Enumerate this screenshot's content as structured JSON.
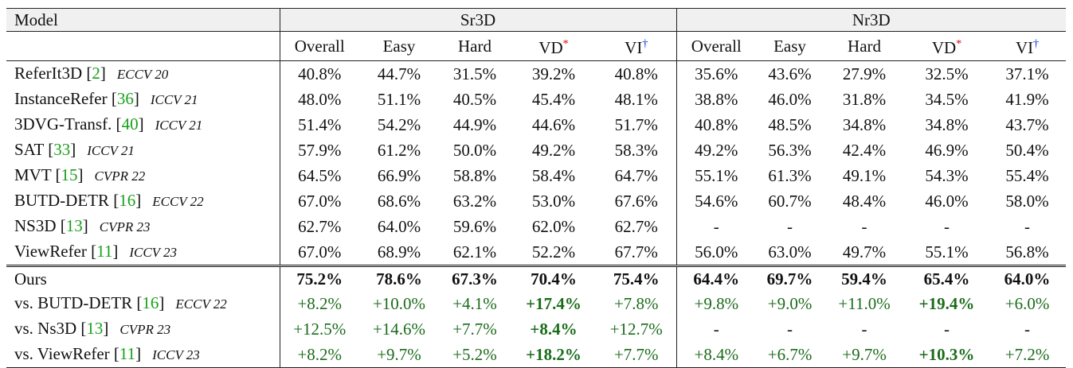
{
  "header": {
    "model_label": "Model",
    "groups": [
      "Sr3D",
      "Nr3D"
    ],
    "columns": [
      "Overall",
      "Easy",
      "Hard",
      "VD",
      "VI",
      "Overall",
      "Easy",
      "Hard",
      "VD",
      "VI"
    ],
    "vd_mark": "*",
    "vi_mark": "†"
  },
  "rows": [
    {
      "name": "ReferIt3D [",
      "cite": "2",
      "close": "]",
      "venue": "ECCV 20",
      "values": [
        "40.8%",
        "44.7%",
        "31.5%",
        "39.2%",
        "40.8%",
        "35.6%",
        "43.6%",
        "27.9%",
        "32.5%",
        "37.1%"
      ]
    },
    {
      "name": "InstanceRefer [",
      "cite": "36",
      "close": "]",
      "venue": "ICCV 21",
      "values": [
        "48.0%",
        "51.1%",
        "40.5%",
        "45.4%",
        "48.1%",
        "38.8%",
        "46.0%",
        "31.8%",
        "34.5%",
        "41.9%"
      ]
    },
    {
      "name": "3DVG-Transf. [",
      "cite": "40",
      "close": "]",
      "venue": "ICCV 21",
      "values": [
        "51.4%",
        "54.2%",
        "44.9%",
        "44.6%",
        "51.7%",
        "40.8%",
        "48.5%",
        "34.8%",
        "34.8%",
        "43.7%"
      ]
    },
    {
      "name": "SAT [",
      "cite": "33",
      "close": "]",
      "venue": "ICCV 21",
      "values": [
        "57.9%",
        "61.2%",
        "50.0%",
        "49.2%",
        "58.3%",
        "49.2%",
        "56.3%",
        "42.4%",
        "46.9%",
        "50.4%"
      ]
    },
    {
      "name": "MVT [",
      "cite": "15",
      "close": "]",
      "venue": "CVPR 22",
      "values": [
        "64.5%",
        "66.9%",
        "58.8%",
        "58.4%",
        "64.7%",
        "55.1%",
        "61.3%",
        "49.1%",
        "54.3%",
        "55.4%"
      ]
    },
    {
      "name": "BUTD-DETR [",
      "cite": "16",
      "close": "]",
      "venue": "ECCV 22",
      "values": [
        "67.0%",
        "68.6%",
        "63.2%",
        "53.0%",
        "67.6%",
        "54.6%",
        "60.7%",
        "48.4%",
        "46.0%",
        "58.0%"
      ]
    },
    {
      "name": "NS3D [",
      "cite": "13",
      "close": "]",
      "venue": "CVPR 23",
      "values": [
        "62.7%",
        "64.0%",
        "59.6%",
        "62.0%",
        "62.7%",
        "-",
        "-",
        "-",
        "-",
        "-"
      ]
    },
    {
      "name": "ViewRefer [",
      "cite": "11",
      "close": "]",
      "venue": "ICCV 23",
      "values": [
        "67.0%",
        "68.9%",
        "62.1%",
        "52.2%",
        "67.7%",
        "56.0%",
        "63.0%",
        "49.7%",
        "55.1%",
        "56.8%"
      ]
    }
  ],
  "ours": {
    "name": "Ours",
    "values": [
      "75.2%",
      "78.6%",
      "67.3%",
      "70.4%",
      "75.4%",
      "64.4%",
      "69.7%",
      "59.4%",
      "65.4%",
      "64.0%"
    ]
  },
  "comparisons": [
    {
      "name": "vs. BUTD-DETR [",
      "cite": "16",
      "close": "]",
      "venue": "ECCV 22",
      "values": [
        "+8.2%",
        "+10.0%",
        "+4.1%",
        "+17.4%",
        "+7.8%",
        "+9.8%",
        "+9.0%",
        "+11.0%",
        "+19.4%",
        "+6.0%"
      ]
    },
    {
      "name": "vs. Ns3D [",
      "cite": "13",
      "close": "]",
      "venue": "CVPR 23",
      "values": [
        "+12.5%",
        "+14.6%",
        "+7.7%",
        "+8.4%",
        "+12.7%",
        "-",
        "-",
        "-",
        "-",
        "-"
      ]
    },
    {
      "name": "vs. ViewRefer [",
      "cite": "11",
      "close": "]",
      "venue": "ICCV 23",
      "values": [
        "+8.2%",
        "+9.7%",
        "+5.2%",
        "+18.2%",
        "+7.7%",
        "+8.4%",
        "+6.7%",
        "+9.7%",
        "+10.3%",
        "+7.2%"
      ]
    }
  ],
  "colors": {
    "citation": "#18a01a",
    "positive_delta": "#1b6b1b",
    "vd_mark": "#dd0000",
    "vi_mark": "#0033cc"
  }
}
